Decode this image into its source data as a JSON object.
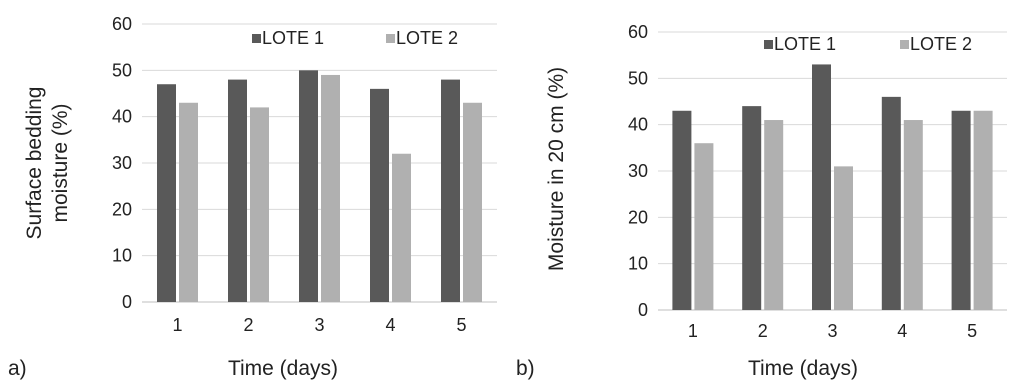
{
  "colors": {
    "lote1": "#595959",
    "lote2": "#b0b0b0",
    "grid": "#d9d9d9",
    "axis": "#bfbfbf"
  },
  "chart_data": [
    {
      "panel": "a)",
      "type": "bar",
      "categories": [
        "1",
        "2",
        "3",
        "4",
        "5"
      ],
      "series": [
        {
          "name": "LOTE 1",
          "values": [
            47,
            48,
            50,
            46,
            48
          ]
        },
        {
          "name": "LOTE 2",
          "values": [
            43,
            42,
            49,
            32,
            43
          ]
        }
      ],
      "xlabel": "Time (days)",
      "ylabel": [
        "Surface bedding",
        "moisture (%)"
      ],
      "ylim": [
        0,
        60
      ],
      "yticks": [
        "0",
        "10",
        "20",
        "30",
        "40",
        "50",
        "60"
      ],
      "grid": true,
      "legend": "top-right"
    },
    {
      "panel": "b)",
      "type": "bar",
      "categories": [
        "1",
        "2",
        "3",
        "4",
        "5"
      ],
      "series": [
        {
          "name": "LOTE 1",
          "values": [
            43,
            44,
            53,
            46,
            43
          ]
        },
        {
          "name": "LOTE 2",
          "values": [
            36,
            41,
            31,
            41,
            43
          ]
        }
      ],
      "xlabel": "Time (days)",
      "ylabel": [
        "Moisture in 20 cm (%)"
      ],
      "ylim": [
        0,
        60
      ],
      "yticks": [
        "0",
        "10",
        "20",
        "30",
        "40",
        "50",
        "60"
      ],
      "grid": true,
      "legend": "top-right"
    }
  ]
}
